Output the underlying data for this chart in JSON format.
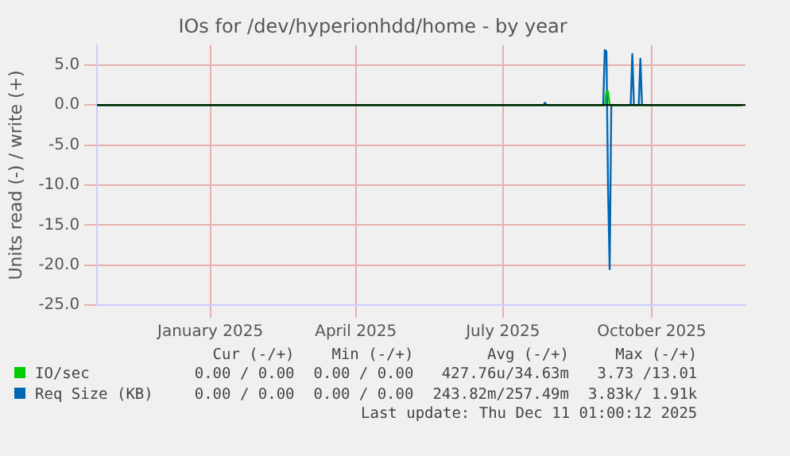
{
  "chart_data": {
    "type": "line",
    "title": "IOs for /dev/hyperionhdd/home - by year",
    "ylabel": "Units read (-) / write (+)",
    "xlim": [
      "2024-11-07",
      "2025-12-13"
    ],
    "xticks": [
      {
        "value": "2025-01-16",
        "label": "January 2025"
      },
      {
        "value": "2025-04-16",
        "label": "April 2025"
      },
      {
        "value": "2025-07-16",
        "label": "July 2025"
      },
      {
        "value": "2025-10-16",
        "label": "October 2025"
      }
    ],
    "ylim": [
      -25,
      7.5
    ],
    "yticks": [
      {
        "value": -25,
        "label": "-25.0"
      },
      {
        "value": -20,
        "label": "-20.0"
      },
      {
        "value": -15,
        "label": "-15.0"
      },
      {
        "value": -10,
        "label": "-10.0"
      },
      {
        "value": -5,
        "label": "-5.0"
      },
      {
        "value": 0,
        "label": "0.0"
      },
      {
        "value": 5,
        "label": "5.0"
      }
    ],
    "ref_lines": [
      {
        "axis": "y",
        "value": 0,
        "color": "#000000"
      }
    ],
    "grid": true,
    "legend": "bottom left",
    "series": [
      {
        "name": "IO/sec",
        "color": "#00cc00",
        "x": [
          "2024-11-07",
          "2025-09-17",
          "2025-09-18",
          "2025-09-19",
          "2025-09-20",
          "2025-12-11"
        ],
        "values": [
          0,
          0,
          1.7,
          1.7,
          0,
          0
        ]
      },
      {
        "name": "Req Size (KB)",
        "color": "#0066b3",
        "x": [
          "2024-11-07",
          "2025-08-10",
          "2025-08-11",
          "2025-08-12",
          "2025-09-16",
          "2025-09-17",
          "2025-09-18",
          "2025-09-19",
          "2025-09-20",
          "2025-09-21",
          "2025-10-03",
          "2025-10-04",
          "2025-10-05",
          "2025-10-08",
          "2025-10-09",
          "2025-10-10",
          "2025-12-11"
        ],
        "values": [
          0,
          0,
          0.3,
          0,
          0,
          6.9,
          6.7,
          -10.3,
          -20.5,
          0,
          0,
          6.4,
          0,
          0,
          5.8,
          0,
          0
        ]
      }
    ],
    "annotations": [
      "Cur (-/+)",
      "Min (-/+)",
      "Avg (-/+)",
      "Max (-/+)",
      "0.00 / 0.00",
      "0.00 / 0.00",
      "427.76u/34.63m",
      "3.73 /13.01",
      "0.00 / 0.00",
      "0.00 / 0.00",
      "243.82m/257.49m",
      "3.83k/ 1.91k",
      "Last update: Thu Dec 11 01:00:12 2025"
    ]
  }
}
